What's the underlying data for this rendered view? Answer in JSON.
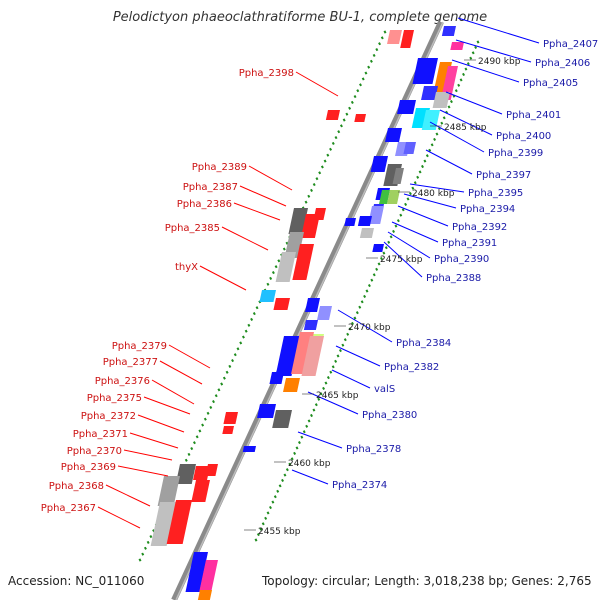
{
  "title": "Pelodictyon phaeoclathratiforme BU-1, complete genome",
  "footer": {
    "accession": "Accession: NC_011060",
    "summary": "Topology: circular; Length: 3,018,238 bp; Genes: 2,765"
  },
  "colors": {
    "forward": "#0000ff",
    "reverse": "#ff0000",
    "label_forward": "#1a1aa8",
    "label_reverse": "#cc1111",
    "backbone": "#8a8a8a",
    "tick": "#1e8c1e"
  },
  "kbp_labels": [
    "2490 kbp",
    "2485 kbp",
    "2480 kbp",
    "2475 kbp",
    "2470 kbp",
    "2465 kbp",
    "2460 kbp",
    "2455 kbp"
  ],
  "genes_forward": [
    {
      "name": "Ppha_2407"
    },
    {
      "name": "Ppha_2406"
    },
    {
      "name": "Ppha_2405"
    },
    {
      "name": "Ppha_2401"
    },
    {
      "name": "Ppha_2400"
    },
    {
      "name": "Ppha_2399"
    },
    {
      "name": "Ppha_2397"
    },
    {
      "name": "Ppha_2395"
    },
    {
      "name": "Ppha_2394"
    },
    {
      "name": "Ppha_2392"
    },
    {
      "name": "Ppha_2391"
    },
    {
      "name": "Ppha_2390"
    },
    {
      "name": "Ppha_2388"
    },
    {
      "name": "Ppha_2384"
    },
    {
      "name": "Ppha_2382"
    },
    {
      "name": "valS"
    },
    {
      "name": "Ppha_2380"
    },
    {
      "name": "Ppha_2378"
    },
    {
      "name": "Ppha_2374"
    }
  ],
  "genes_reverse": [
    {
      "name": "Ppha_2398"
    },
    {
      "name": "Ppha_2389"
    },
    {
      "name": "Ppha_2387"
    },
    {
      "name": "Ppha_2386"
    },
    {
      "name": "Ppha_2385"
    },
    {
      "name": "thyX"
    },
    {
      "name": "Ppha_2379"
    },
    {
      "name": "Ppha_2377"
    },
    {
      "name": "Ppha_2376"
    },
    {
      "name": "Ppha_2375"
    },
    {
      "name": "Ppha_2372"
    },
    {
      "name": "Ppha_2371"
    },
    {
      "name": "Ppha_2370"
    },
    {
      "name": "Ppha_2369"
    },
    {
      "name": "Ppha_2368"
    },
    {
      "name": "Ppha_2367"
    }
  ]
}
